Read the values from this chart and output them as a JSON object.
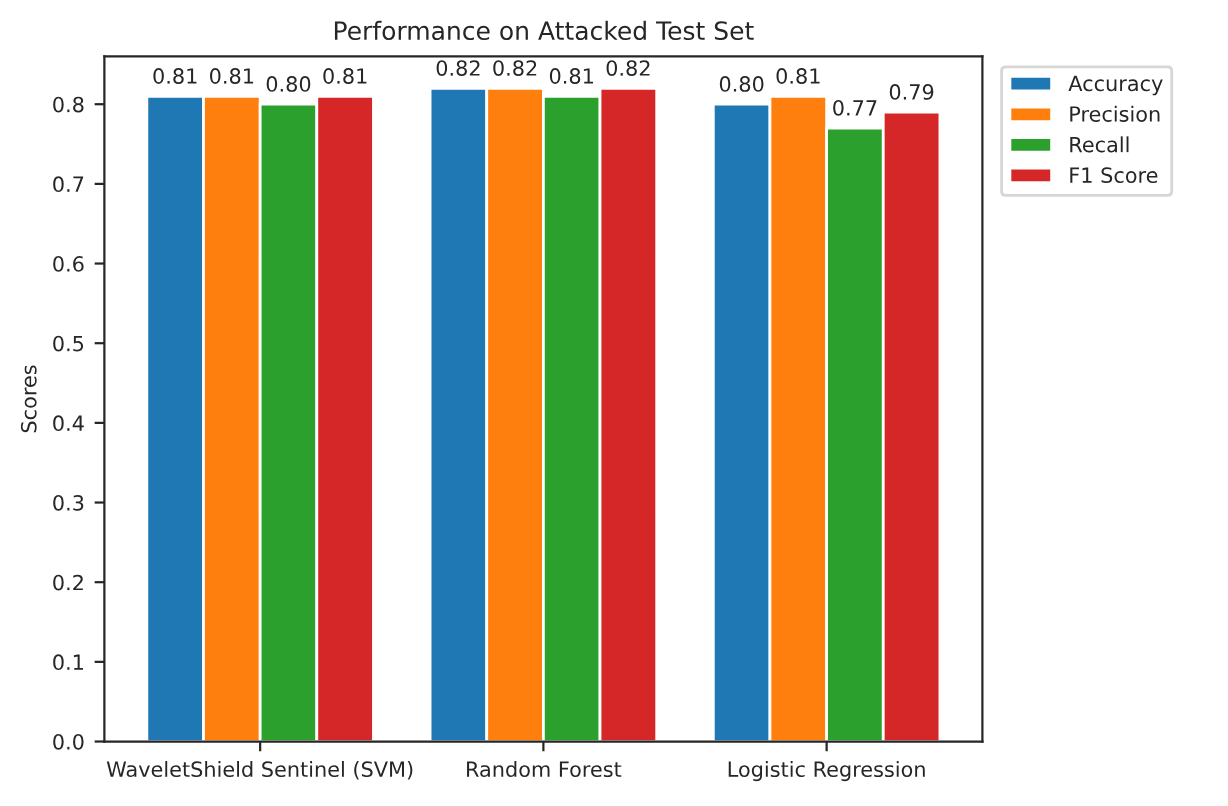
{
  "chart_data": {
    "type": "bar",
    "title": "Performance on Attacked Test Set",
    "ylabel": "Scores",
    "categories": [
      "WaveletShield Sentinel (SVM)",
      "Random Forest",
      "Logistic Regression"
    ],
    "series": [
      {
        "name": "Accuracy",
        "color": "#1f77b4",
        "values": [
          0.81,
          0.82,
          0.8
        ],
        "value_labels": [
          "0.81",
          "0.82",
          "0.80"
        ]
      },
      {
        "name": "Precision",
        "color": "#ff7f0e",
        "values": [
          0.81,
          0.82,
          0.81
        ],
        "value_labels": [
          "0.81",
          "0.82",
          "0.81"
        ]
      },
      {
        "name": "Recall",
        "color": "#2ca02c",
        "values": [
          0.8,
          0.81,
          0.77
        ],
        "value_labels": [
          "0.80",
          "0.81",
          "0.77"
        ]
      },
      {
        "name": "F1 Score",
        "color": "#d62728",
        "values": [
          0.81,
          0.82,
          0.79
        ],
        "value_labels": [
          "0.81",
          "0.82",
          "0.79"
        ]
      }
    ],
    "ylim": [
      0,
      0.86
    ],
    "yticks": [
      {
        "value": 0,
        "label": "0.0"
      },
      0.1,
      0.2,
      0.3,
      0.4,
      0.5,
      0.6,
      0.7,
      0.8
    ],
    "grid": false,
    "legend": "top right"
  }
}
